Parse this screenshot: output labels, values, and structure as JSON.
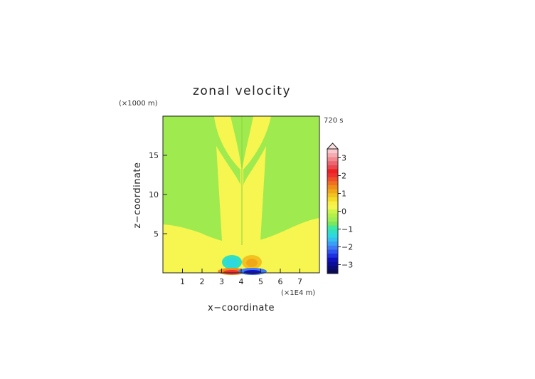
{
  "chart_data": {
    "type": "heatmap",
    "title": "zonal velocity",
    "xlabel": "x−coordinate",
    "ylabel": "z−coordinate",
    "x_units": "(×1E4 m)",
    "y_units": "(×1000 m)",
    "time_label": "720 s",
    "xlim": [
      0,
      8
    ],
    "ylim": [
      0,
      20
    ],
    "x_ticks": [
      1,
      2,
      3,
      4,
      5,
      6,
      7
    ],
    "y_ticks": [
      5,
      10,
      15
    ],
    "grid": false,
    "legend_placement": "right",
    "colorbar": {
      "min": -3.5,
      "max": 3.5,
      "step": 0.25,
      "tick_values": [
        3,
        2,
        1,
        0,
        -1,
        -2,
        -3
      ],
      "tick_labels": [
        "3",
        "2",
        "1",
        "0",
        "−1",
        "−2",
        "−3"
      ],
      "extend": "max",
      "colors": [
        "#0a0a55",
        "#0b0b78",
        "#0c0c9a",
        "#1010c0",
        "#1f30e0",
        "#2e55f0",
        "#3f7af5",
        "#3aa0f5",
        "#36c0f0",
        "#2ed8e0",
        "#30e0c0",
        "#40e8a0",
        "#7ee65a",
        "#99ef55",
        "#b3f04a",
        "#ccf54a",
        "#f6f54e",
        "#f7ef44",
        "#f4dc26",
        "#f2c320",
        "#f0a818",
        "#ef8f1a",
        "#ef7020",
        "#ef5028",
        "#ee3030",
        "#ee2020",
        "#ea4850",
        "#ec6570",
        "#f08a8e",
        "#f4acb0",
        "#f8c8cc"
      ]
    },
    "approximate_field": {
      "background": 0.25,
      "regions": [
        {
          "name": "upper-left-negative-lobe",
          "value": -0.25
        },
        {
          "name": "upper-right-negative-lobe",
          "value": -0.25
        },
        {
          "name": "center-column-negative",
          "value": -0.25
        },
        {
          "name": "low-level-left-negative-cell",
          "x": 3.5,
          "z": 1.4,
          "value": -1.0
        },
        {
          "name": "low-level-right-positive-cell",
          "x": 4.5,
          "z": 1.4,
          "value": 1.0
        },
        {
          "name": "surface-left-positive-cell",
          "x": 3.5,
          "z": 0.2,
          "value": 3.0
        },
        {
          "name": "surface-right-negative-cell",
          "x": 4.5,
          "z": 0.2,
          "value": -3.0
        }
      ]
    }
  }
}
